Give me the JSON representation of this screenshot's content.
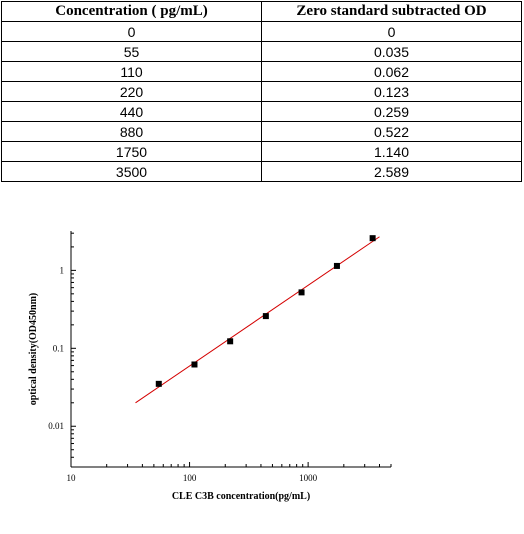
{
  "table": {
    "headers": [
      "Concentration ( pg/mL)",
      "Zero standard subtracted OD"
    ],
    "rows": [
      [
        "0",
        "0"
      ],
      [
        "55",
        "0.035"
      ],
      [
        "110",
        "0.062"
      ],
      [
        "220",
        "0.123"
      ],
      [
        "440",
        "0.259"
      ],
      [
        "880",
        "0.522"
      ],
      [
        "1750",
        "1.140"
      ],
      [
        "3500",
        "2.589"
      ]
    ]
  },
  "chart_data": {
    "type": "scatter",
    "xlabel": "CLE C3B  concentration(pg/mL)",
    "ylabel": "optical density(OD450nm)",
    "xscale": "log",
    "yscale": "log",
    "xlim": [
      10,
      5000
    ],
    "ylim": [
      0.003,
      3.2
    ],
    "xticks": [
      10,
      100,
      1000
    ],
    "xtick_labels": [
      "10",
      "100",
      "1000"
    ],
    "yticks": [
      0.01,
      0.1,
      1
    ],
    "ytick_labels": [
      "0.01",
      "0.1",
      "1"
    ],
    "points": {
      "x": [
        55,
        110,
        220,
        440,
        880,
        1750,
        3500
      ],
      "y": [
        0.035,
        0.062,
        0.123,
        0.259,
        0.522,
        1.14,
        2.589
      ]
    },
    "fit_line": {
      "x": [
        35,
        4000
      ],
      "y": [
        0.02,
        2.7
      ],
      "color": "#d40000"
    },
    "grid": false
  }
}
